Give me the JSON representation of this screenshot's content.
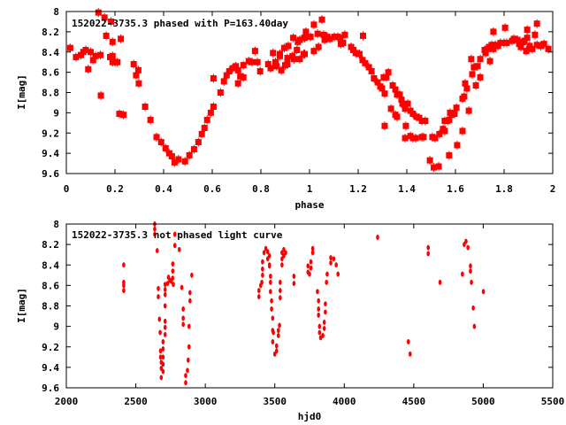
{
  "chart_data": [
    {
      "type": "scatter",
      "title": "152022-3735.3 phased with P=163.40day",
      "xlabel": "phase",
      "ylabel": "I[mag]",
      "xlim": [
        0,
        2
      ],
      "ylim": [
        9.6,
        8
      ],
      "y_inverted": true,
      "xticks": [
        "0",
        "0.2",
        "0.4",
        "0.6",
        "0.8",
        "1",
        "1.2",
        "1.4",
        "1.6",
        "1.8",
        "2"
      ],
      "yticks": [
        "8",
        "8.2",
        "8.4",
        "8.6",
        "8.8",
        "9",
        "9.2",
        "9.4",
        "9.6"
      ],
      "marker_color": "#ff0000",
      "points": [
        [
          0.016,
          8.36
        ],
        [
          0.04,
          8.45
        ],
        [
          0.06,
          8.43
        ],
        [
          0.07,
          8.4
        ],
        [
          0.08,
          8.38
        ],
        [
          0.09,
          8.57
        ],
        [
          0.1,
          8.4
        ],
        [
          0.11,
          8.48
        ],
        [
          0.12,
          8.44
        ],
        [
          0.14,
          8.43
        ],
        [
          0.18,
          8.45
        ],
        [
          0.19,
          8.44
        ],
        [
          0.132,
          8.01
        ],
        [
          0.157,
          8.06
        ],
        [
          0.164,
          8.24
        ],
        [
          0.184,
          8.1
        ],
        [
          0.19,
          8.3
        ],
        [
          0.224,
          8.27
        ],
        [
          0.142,
          8.83
        ],
        [
          0.19,
          8.5
        ],
        [
          0.2,
          8.5
        ],
        [
          0.21,
          8.5
        ],
        [
          0.218,
          9.01
        ],
        [
          0.235,
          9.02
        ],
        [
          0.277,
          8.52
        ],
        [
          0.287,
          8.63
        ],
        [
          0.296,
          8.58
        ],
        [
          0.298,
          8.71
        ],
        [
          0.324,
          8.94
        ],
        [
          0.346,
          9.07
        ],
        [
          0.371,
          9.24
        ],
        [
          0.39,
          9.29
        ],
        [
          0.408,
          9.35
        ],
        [
          0.423,
          9.4
        ],
        [
          0.434,
          9.43
        ],
        [
          0.445,
          9.49
        ],
        [
          0.461,
          9.46
        ],
        [
          0.488,
          9.48
        ],
        [
          0.506,
          9.42
        ],
        [
          0.525,
          9.36
        ],
        [
          0.543,
          9.29
        ],
        [
          0.557,
          9.21
        ],
        [
          0.568,
          9.15
        ],
        [
          0.579,
          9.07
        ],
        [
          0.594,
          9.0
        ],
        [
          0.605,
          8.94
        ],
        [
          0.605,
          8.66
        ],
        [
          0.634,
          8.8
        ],
        [
          0.648,
          8.69
        ],
        [
          0.659,
          8.63
        ],
        [
          0.67,
          8.59
        ],
        [
          0.684,
          8.56
        ],
        [
          0.697,
          8.54
        ],
        [
          0.706,
          8.58
        ],
        [
          0.715,
          8.64
        ],
        [
          0.728,
          8.65
        ],
        [
          0.706,
          8.71
        ],
        [
          0.728,
          8.53
        ],
        [
          0.75,
          8.49
        ],
        [
          0.764,
          8.5
        ],
        [
          0.776,
          8.39
        ],
        [
          0.786,
          8.5
        ],
        [
          0.797,
          8.59
        ],
        [
          0.83,
          8.52
        ],
        [
          0.84,
          8.56
        ],
        [
          0.85,
          8.41
        ],
        [
          0.86,
          8.5
        ],
        [
          0.865,
          8.54
        ],
        [
          0.878,
          8.42
        ],
        [
          0.878,
          8.44
        ],
        [
          0.884,
          8.58
        ],
        [
          0.896,
          8.36
        ],
        [
          0.9,
          8.53
        ],
        [
          0.909,
          8.52
        ],
        [
          0.913,
          8.34
        ],
        [
          0.909,
          8.46
        ],
        [
          0.93,
          8.44
        ],
        [
          0.933,
          8.26
        ],
        [
          0.936,
          8.47
        ],
        [
          0.948,
          8.38
        ],
        [
          0.952,
          8.3
        ],
        [
          0.96,
          8.28
        ],
        [
          0.96,
          8.47
        ],
        [
          0.976,
          8.42
        ],
        [
          0.978,
          8.26
        ],
        [
          0.985,
          8.2
        ],
        [
          0.98,
          8.26
        ],
        [
          0.98,
          8.42
        ],
        [
          1.004,
          8.25
        ],
        [
          1.018,
          8.13
        ],
        [
          1.018,
          8.39
        ],
        [
          1.033,
          8.22
        ],
        [
          1.037,
          8.35
        ],
        [
          1.051,
          8.08
        ],
        [
          1.058,
          8.23
        ],
        [
          1.062,
          8.28
        ],
        [
          1.073,
          8.25
        ],
        [
          1.084,
          8.27
        ],
        [
          1.102,
          8.25
        ],
        [
          1.116,
          8.25
        ],
        [
          1.127,
          8.26
        ],
        [
          1.129,
          8.32
        ],
        [
          1.138,
          8.31
        ],
        [
          1.145,
          8.23
        ],
        [
          1.171,
          8.35
        ],
        [
          1.18,
          8.38
        ],
        [
          1.19,
          8.41
        ],
        [
          1.205,
          8.42
        ],
        [
          1.22,
          8.24
        ],
        [
          1.218,
          8.48
        ],
        [
          1.229,
          8.51
        ],
        [
          1.244,
          8.55
        ],
        [
          1.255,
          8.59
        ],
        [
          1.265,
          8.66
        ],
        [
          1.28,
          8.7
        ],
        [
          1.291,
          8.74
        ],
        [
          1.298,
          8.76
        ],
        [
          1.305,
          8.65
        ],
        [
          1.309,
          8.81
        ],
        [
          1.309,
          9.13
        ],
        [
          1.316,
          8.65
        ],
        [
          1.324,
          8.6
        ],
        [
          1.335,
          8.96
        ],
        [
          1.342,
          8.73
        ],
        [
          1.353,
          8.77
        ],
        [
          1.353,
          9.02
        ],
        [
          1.36,
          9.04
        ],
        [
          1.36,
          8.82
        ],
        [
          1.371,
          8.82
        ],
        [
          1.378,
          8.87
        ],
        [
          1.382,
          8.91
        ],
        [
          1.389,
          8.92
        ],
        [
          1.393,
          8.96
        ],
        [
          1.393,
          9.25
        ],
        [
          1.396,
          9.13
        ],
        [
          1.404,
          8.91
        ],
        [
          1.415,
          8.98
        ],
        [
          1.415,
          9.23
        ],
        [
          1.425,
          9.01
        ],
        [
          1.425,
          9.25
        ],
        [
          1.436,
          9.25
        ],
        [
          1.44,
          9.04
        ],
        [
          1.451,
          9.05
        ],
        [
          1.462,
          9.24
        ],
        [
          1.462,
          9.08
        ],
        [
          1.469,
          9.24
        ],
        [
          1.476,
          9.08
        ],
        [
          1.495,
          9.47
        ],
        [
          1.505,
          9.24
        ],
        [
          1.511,
          9.54
        ],
        [
          1.516,
          9.25
        ],
        [
          1.531,
          9.53
        ],
        [
          1.534,
          9.21
        ],
        [
          1.549,
          9.16
        ],
        [
          1.556,
          9.18
        ],
        [
          1.556,
          9.08
        ],
        [
          1.567,
          9.08
        ],
        [
          1.574,
          9.42
        ],
        [
          1.574,
          9.07
        ],
        [
          1.578,
          9.0
        ],
        [
          1.585,
          9.02
        ],
        [
          1.596,
          9.01
        ],
        [
          1.604,
          8.95
        ],
        [
          1.607,
          9.32
        ],
        [
          1.629,
          9.18
        ],
        [
          1.629,
          8.86
        ],
        [
          1.636,
          8.84
        ],
        [
          1.64,
          8.71
        ],
        [
          1.647,
          8.76
        ],
        [
          1.655,
          8.98
        ],
        [
          1.665,
          8.47
        ],
        [
          1.669,
          8.62
        ],
        [
          1.676,
          8.55
        ],
        [
          1.684,
          8.73
        ],
        [
          1.691,
          8.54
        ],
        [
          1.702,
          8.47
        ],
        [
          1.702,
          8.65
        ],
        [
          1.72,
          8.38
        ],
        [
          1.724,
          8.41
        ],
        [
          1.731,
          8.37
        ],
        [
          1.738,
          8.35
        ],
        [
          1.742,
          8.49
        ],
        [
          1.749,
          8.33
        ],
        [
          1.756,
          8.2
        ],
        [
          1.756,
          8.37
        ],
        [
          1.764,
          8.33
        ],
        [
          1.775,
          8.34
        ],
        [
          1.785,
          8.31
        ],
        [
          1.8,
          8.31
        ],
        [
          1.804,
          8.16
        ],
        [
          1.811,
          8.31
        ],
        [
          1.833,
          8.29
        ],
        [
          1.84,
          8.27
        ],
        [
          1.855,
          8.28
        ],
        [
          1.862,
          8.32
        ],
        [
          1.869,
          8.35
        ],
        [
          1.878,
          8.3
        ],
        [
          1.884,
          8.29
        ],
        [
          1.891,
          8.39
        ],
        [
          1.895,
          8.18
        ],
        [
          1.895,
          8.26
        ],
        [
          1.905,
          8.34
        ],
        [
          1.916,
          8.37
        ],
        [
          1.927,
          8.23
        ],
        [
          1.935,
          8.12
        ],
        [
          1.935,
          8.33
        ],
        [
          1.951,
          8.34
        ],
        [
          1.964,
          8.32
        ],
        [
          1.982,
          8.37
        ]
      ]
    },
    {
      "type": "scatter",
      "title": "152022-3735.3 not phased light curve",
      "xlabel": "hjd0",
      "ylabel": "I[mag]",
      "xlim": [
        2000,
        5500
      ],
      "ylim": [
        9.6,
        8
      ],
      "y_inverted": true,
      "xticks": [
        "2000",
        "2500",
        "3000",
        "3500",
        "4000",
        "4500",
        "5000",
        "5500"
      ],
      "yticks": [
        "8",
        "8.2",
        "8.4",
        "8.6",
        "8.8",
        "9",
        "9.2",
        "9.4",
        "9.6"
      ],
      "marker_color": "#ff0000",
      "points": [
        [
          2413,
          8.4
        ],
        [
          2413,
          8.57
        ],
        [
          2413,
          8.6
        ],
        [
          2413,
          8.65
        ],
        [
          2636,
          8.0
        ],
        [
          2636,
          8.05
        ],
        [
          2636,
          8.1
        ],
        [
          2654,
          8.26
        ],
        [
          2662,
          8.63
        ],
        [
          2662,
          8.71
        ],
        [
          2670,
          8.93
        ],
        [
          2675,
          9.06
        ],
        [
          2678,
          9.24
        ],
        [
          2678,
          9.3
        ],
        [
          2683,
          9.35
        ],
        [
          2683,
          9.41
        ],
        [
          2683,
          9.5
        ],
        [
          2696,
          9.37
        ],
        [
          2696,
          9.44
        ],
        [
          2696,
          9.15
        ],
        [
          2696,
          9.22
        ],
        [
          2696,
          9.3
        ],
        [
          2711,
          8.95
        ],
        [
          2711,
          9.01
        ],
        [
          2711,
          9.08
        ],
        [
          2711,
          8.8
        ],
        [
          2711,
          8.69
        ],
        [
          2711,
          8.64
        ],
        [
          2711,
          8.59
        ],
        [
          2729,
          8.58
        ],
        [
          2735,
          8.52
        ],
        [
          2745,
          8.55
        ],
        [
          2755,
          8.56
        ],
        [
          2765,
          8.53
        ],
        [
          2770,
          8.59
        ],
        [
          2766,
          8.46
        ],
        [
          2766,
          8.39
        ],
        [
          2781,
          8.1
        ],
        [
          2781,
          8.21
        ],
        [
          2813,
          8.25
        ],
        [
          2831,
          8.62
        ],
        [
          2841,
          8.83
        ],
        [
          2841,
          8.92
        ],
        [
          2841,
          8.98
        ],
        [
          2859,
          9.48
        ],
        [
          2859,
          9.55
        ],
        [
          2872,
          9.43
        ],
        [
          2877,
          9.33
        ],
        [
          2883,
          9.2
        ],
        [
          2883,
          9.0
        ],
        [
          2890,
          8.75
        ],
        [
          2890,
          8.67
        ],
        [
          2903,
          8.5
        ],
        [
          3386,
          8.65
        ],
        [
          3386,
          8.71
        ],
        [
          3399,
          8.6
        ],
        [
          3407,
          8.57
        ],
        [
          3412,
          8.5
        ],
        [
          3412,
          8.44
        ],
        [
          3412,
          8.37
        ],
        [
          3423,
          8.28
        ],
        [
          3436,
          8.24
        ],
        [
          3449,
          8.27
        ],
        [
          3449,
          8.34
        ],
        [
          3462,
          8.4
        ],
        [
          3462,
          8.31
        ],
        [
          3462,
          8.41
        ],
        [
          3469,
          8.51
        ],
        [
          3469,
          8.57
        ],
        [
          3469,
          8.66
        ],
        [
          3477,
          8.75
        ],
        [
          3477,
          8.83
        ],
        [
          3485,
          8.92
        ],
        [
          3485,
          9.04
        ],
        [
          3485,
          9.15
        ],
        [
          3490,
          9.06
        ],
        [
          3500,
          9.27
        ],
        [
          3513,
          9.19
        ],
        [
          3513,
          9.24
        ],
        [
          3526,
          9.09
        ],
        [
          3526,
          9.04
        ],
        [
          3534,
          8.99
        ],
        [
          3539,
          8.72
        ],
        [
          3539,
          8.65
        ],
        [
          3539,
          8.57
        ],
        [
          3552,
          8.4
        ],
        [
          3552,
          8.34
        ],
        [
          3552,
          8.28
        ],
        [
          3565,
          8.31
        ],
        [
          3565,
          8.25
        ],
        [
          3578,
          8.28
        ],
        [
          3638,
          8.51
        ],
        [
          3638,
          8.58
        ],
        [
          3739,
          8.41
        ],
        [
          3739,
          8.47
        ],
        [
          3750,
          8.49
        ],
        [
          3760,
          8.37
        ],
        [
          3760,
          8.43
        ],
        [
          3773,
          8.28
        ],
        [
          3773,
          8.24
        ],
        [
          3807,
          8.66
        ],
        [
          3815,
          8.75
        ],
        [
          3815,
          8.83
        ],
        [
          3815,
          8.89
        ],
        [
          3822,
          9.0
        ],
        [
          3822,
          9.06
        ],
        [
          3830,
          9.11
        ],
        [
          3846,
          9.09
        ],
        [
          3856,
          8.96
        ],
        [
          3856,
          9.02
        ],
        [
          3864,
          8.86
        ],
        [
          3864,
          8.78
        ],
        [
          3872,
          8.57
        ],
        [
          3877,
          8.49
        ],
        [
          3903,
          8.33
        ],
        [
          3903,
          8.38
        ],
        [
          3924,
          8.34
        ],
        [
          3942,
          8.4
        ],
        [
          3955,
          8.49
        ],
        [
          4240,
          8.13
        ],
        [
          4461,
          9.15
        ],
        [
          4474,
          9.27
        ],
        [
          4604,
          8.23
        ],
        [
          4604,
          8.29
        ],
        [
          4689,
          8.57
        ],
        [
          4850,
          8.49
        ],
        [
          4863,
          8.2
        ],
        [
          4876,
          8.17
        ],
        [
          4890,
          8.23
        ],
        [
          4908,
          8.41
        ],
        [
          4908,
          8.46
        ],
        [
          4915,
          8.57
        ],
        [
          4928,
          8.82
        ],
        [
          4936,
          9.0
        ],
        [
          5001,
          8.66
        ]
      ]
    }
  ]
}
